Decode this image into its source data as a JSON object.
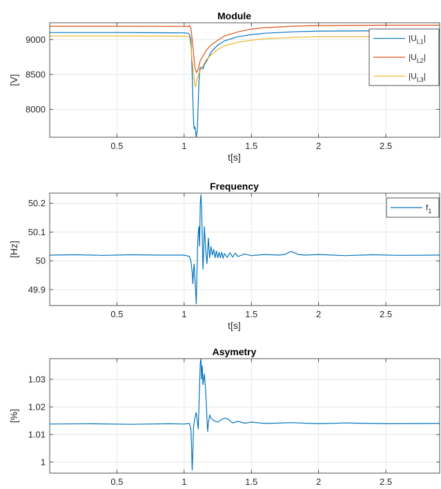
{
  "chart_data": [
    {
      "type": "line",
      "title": "Module",
      "xlabel": "t[s]",
      "ylabel": "[V]",
      "xlim": [
        0,
        2.9
      ],
      "ylim": [
        7600,
        9240
      ],
      "xticks": [
        0.5,
        1,
        1.5,
        2,
        2.5
      ],
      "xtick_labels": [
        "0.5",
        "1",
        "1.5",
        "2",
        "2.5"
      ],
      "yticks": [
        8000,
        8500,
        9000
      ],
      "ytick_labels": [
        "8000",
        "8500",
        "9000"
      ],
      "grid": true,
      "legend": "top-right",
      "series": [
        {
          "name": "|UL1|",
          "legend_parts": [
            "|U",
            "L1",
            "|"
          ],
          "color": "#0072BD",
          "x": [
            0,
            0.5,
            1.0,
            1.03,
            1.04,
            1.05,
            1.055,
            1.06,
            1.065,
            1.07,
            1.075,
            1.08,
            1.085,
            1.09,
            1.095,
            1.1,
            1.105,
            1.11,
            1.115,
            1.12,
            1.13,
            1.14,
            1.15,
            1.17,
            1.2,
            1.25,
            1.3,
            1.4,
            1.5,
            1.6,
            1.8,
            2.0,
            2.5,
            2.9
          ],
          "values": [
            9100,
            9100,
            9095,
            9090,
            9070,
            9000,
            8800,
            8500,
            8150,
            7800,
            7720,
            7750,
            7680,
            7600,
            7650,
            7800,
            8100,
            8400,
            8550,
            8600,
            8600,
            8580,
            8640,
            8700,
            8820,
            8920,
            8980,
            9040,
            9070,
            9090,
            9110,
            9120,
            9125,
            9125
          ]
        },
        {
          "name": "|UL2|",
          "legend_parts": [
            "|U",
            "L2",
            "|"
          ],
          "color": "#D95319",
          "x": [
            0,
            0.5,
            1.0,
            1.03,
            1.04,
            1.05,
            1.06,
            1.07,
            1.08,
            1.09,
            1.1,
            1.11,
            1.12,
            1.14,
            1.16,
            1.18,
            1.2,
            1.25,
            1.3,
            1.4,
            1.5,
            1.6,
            1.8,
            2.0,
            2.5,
            2.9
          ],
          "values": [
            9190,
            9190,
            9188,
            9185,
            9200,
            9160,
            9000,
            8800,
            8600,
            8530,
            8550,
            8620,
            8700,
            8760,
            8830,
            8880,
            8920,
            8990,
            9050,
            9110,
            9150,
            9170,
            9190,
            9200,
            9205,
            9205
          ]
        },
        {
          "name": "|UL3|",
          "legend_parts": [
            "|U",
            "L3",
            "|"
          ],
          "color": "#EDB120",
          "x": [
            0,
            0.5,
            1.0,
            1.03,
            1.04,
            1.05,
            1.06,
            1.07,
            1.08,
            1.085,
            1.09,
            1.1,
            1.11,
            1.12,
            1.14,
            1.16,
            1.2,
            1.25,
            1.3,
            1.4,
            1.5,
            1.6,
            1.8,
            2.0,
            2.5,
            2.9
          ],
          "values": [
            9050,
            9050,
            9048,
            9045,
            9030,
            8900,
            8700,
            8500,
            8350,
            8320,
            8380,
            8450,
            8520,
            8560,
            8620,
            8700,
            8780,
            8860,
            8910,
            8960,
            8990,
            9010,
            9030,
            9040,
            9040,
            9040
          ]
        }
      ]
    },
    {
      "type": "line",
      "title": "Frequency",
      "xlabel": "t[s]",
      "ylabel": "[Hz]",
      "xlim": [
        0,
        2.9
      ],
      "ylim": [
        49.845,
        50.235
      ],
      "xticks": [
        0.5,
        1,
        1.5,
        2,
        2.5
      ],
      "xtick_labels": [
        "0.5",
        "1",
        "1.5",
        "2",
        "2.5"
      ],
      "yticks": [
        49.9,
        50,
        50.1,
        50.2
      ],
      "ytick_labels": [
        "49.9",
        "50",
        "50.1",
        "50.2"
      ],
      "grid": true,
      "legend": "top-right",
      "series": [
        {
          "name": "f1",
          "legend_parts": [
            "f",
            "1",
            ""
          ],
          "color": "#0072BD",
          "x": [
            0,
            0.2,
            0.4,
            0.6,
            0.8,
            1.0,
            1.04,
            1.05,
            1.06,
            1.065,
            1.07,
            1.075,
            1.08,
            1.085,
            1.09,
            1.095,
            1.1,
            1.105,
            1.11,
            1.115,
            1.12,
            1.125,
            1.13,
            1.135,
            1.14,
            1.145,
            1.15,
            1.16,
            1.17,
            1.18,
            1.19,
            1.2,
            1.21,
            1.22,
            1.23,
            1.24,
            1.25,
            1.26,
            1.27,
            1.28,
            1.29,
            1.3,
            1.32,
            1.34,
            1.36,
            1.38,
            1.4,
            1.45,
            1.5,
            1.6,
            1.7,
            1.75,
            1.78,
            1.8,
            1.85,
            1.9,
            2.0,
            2.2,
            2.4,
            2.6,
            2.9
          ],
          "values": [
            50.02,
            50.021,
            50.019,
            50.021,
            50.02,
            50.02,
            50.015,
            50.0,
            49.96,
            49.92,
            49.97,
            49.99,
            49.94,
            49.9,
            49.85,
            49.95,
            50.05,
            50.1,
            50.12,
            50.05,
            50.2,
            50.23,
            50.18,
            50.08,
            49.97,
            50.03,
            50.12,
            50.04,
            49.99,
            50.08,
            50.01,
            50.05,
            50.02,
            50.04,
            50.01,
            50.035,
            50.01,
            50.03,
            50.01,
            50.03,
            50.01,
            50.025,
            50.012,
            50.028,
            50.013,
            50.027,
            50.015,
            50.024,
            50.018,
            50.022,
            50.02,
            50.022,
            50.03,
            50.032,
            50.022,
            50.02,
            50.022,
            50.018,
            50.021,
            50.019,
            50.02
          ]
        }
      ]
    },
    {
      "type": "line",
      "title": "Asymetry",
      "xlabel": "",
      "ylabel": "[%]",
      "xlim": [
        0,
        2.9
      ],
      "ylim": [
        0.996,
        1.0375
      ],
      "xticks": [
        0.5,
        1,
        1.5,
        2,
        2.5
      ],
      "xtick_labels": [
        "0.5",
        "1",
        "1.5",
        "2",
        "2.5"
      ],
      "yticks": [
        1,
        1.01,
        1.02,
        1.03
      ],
      "ytick_labels": [
        "1",
        "1.01",
        "1.02",
        "1.03"
      ],
      "grid": true,
      "legend": "none",
      "series": [
        {
          "name": "",
          "color": "#0072BD",
          "x": [
            0,
            0.3,
            0.6,
            0.9,
            1.0,
            1.04,
            1.05,
            1.055,
            1.06,
            1.065,
            1.07,
            1.08,
            1.09,
            1.1,
            1.105,
            1.11,
            1.115,
            1.12,
            1.125,
            1.13,
            1.135,
            1.14,
            1.15,
            1.16,
            1.17,
            1.175,
            1.18,
            1.19,
            1.2,
            1.22,
            1.25,
            1.28,
            1.3,
            1.33,
            1.36,
            1.4,
            1.45,
            1.5,
            1.6,
            1.8,
            2.0,
            2.2,
            2.5,
            2.9
          ],
          "values": [
            1.0138,
            1.0139,
            1.0137,
            1.0139,
            1.0138,
            1.014,
            1.012,
            1.006,
            0.997,
            1.004,
            1.013,
            1.016,
            1.018,
            1.014,
            1.012,
            1.02,
            1.028,
            1.036,
            1.0375,
            1.03,
            1.035,
            1.028,
            1.032,
            1.026,
            1.016,
            1.011,
            1.014,
            1.017,
            1.016,
            1.015,
            1.0145,
            1.0155,
            1.016,
            1.0155,
            1.0142,
            1.0148,
            1.0141,
            1.0145,
            1.014,
            1.0143,
            1.0139,
            1.0142,
            1.0139,
            1.014
          ]
        }
      ]
    }
  ]
}
